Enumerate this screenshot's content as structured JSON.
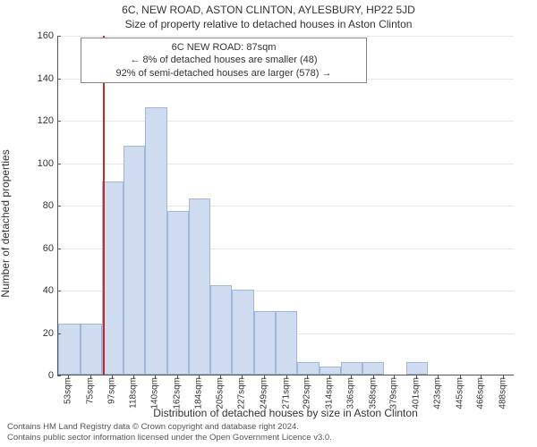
{
  "title_line1": "6C, NEW ROAD, ASTON CLINTON, AYLESBURY, HP22 5JD",
  "title_line2": "Size of property relative to detached houses in Aston Clinton",
  "ylabel": "Number of detached properties",
  "xlabel": "Distribution of detached houses by size in Aston Clinton",
  "annotation": {
    "line1": "6C NEW ROAD: 87sqm",
    "line2": "← 8% of detached houses are smaller (48)",
    "line3": "92% of semi-detached houses are larger (578) →"
  },
  "footer": {
    "line1": "Contains HM Land Registry data © Crown copyright and database right 2024.",
    "line2": "Contains public sector information licensed under the Open Government Licence v3.0."
  },
  "chart": {
    "type": "histogram",
    "background_color": "#ffffff",
    "grid_color": "#e6e6e6",
    "axis_color": "#555555",
    "bar_fill": "#cfdcf0",
    "bar_border": "#9fb7db",
    "marker_color": "#c62828",
    "marker_x": 87,
    "xlim": [
      42,
      499
    ],
    "ylim": [
      0,
      160
    ],
    "ytick_step": 20,
    "yticks": [
      0,
      20,
      40,
      60,
      80,
      100,
      120,
      140,
      160
    ],
    "xticks": [
      53,
      75,
      97,
      118,
      140,
      162,
      184,
      205,
      227,
      249,
      271,
      292,
      314,
      336,
      358,
      379,
      401,
      423,
      445,
      466,
      488
    ],
    "xtick_suffix": "sqm",
    "bin_width": 21.75,
    "bars": [
      {
        "x0": 42.25,
        "count": 24
      },
      {
        "x0": 64.0,
        "count": 24
      },
      {
        "x0": 85.75,
        "count": 91
      },
      {
        "x0": 107.5,
        "count": 108
      },
      {
        "x0": 129.25,
        "count": 126
      },
      {
        "x0": 151.0,
        "count": 77
      },
      {
        "x0": 172.75,
        "count": 83
      },
      {
        "x0": 194.5,
        "count": 42
      },
      {
        "x0": 216.25,
        "count": 40
      },
      {
        "x0": 238.0,
        "count": 30
      },
      {
        "x0": 259.75,
        "count": 30
      },
      {
        "x0": 281.5,
        "count": 6
      },
      {
        "x0": 303.25,
        "count": 4
      },
      {
        "x0": 325.0,
        "count": 6
      },
      {
        "x0": 346.75,
        "count": 6
      },
      {
        "x0": 368.5,
        "count": 0
      },
      {
        "x0": 390.25,
        "count": 6
      },
      {
        "x0": 412.0,
        "count": 0
      },
      {
        "x0": 433.75,
        "count": 0
      },
      {
        "x0": 455.5,
        "count": 0
      },
      {
        "x0": 477.25,
        "count": 0
      }
    ],
    "label_fontsize": 12,
    "tick_fontsize": 11,
    "xtick_fontsize": 10
  }
}
